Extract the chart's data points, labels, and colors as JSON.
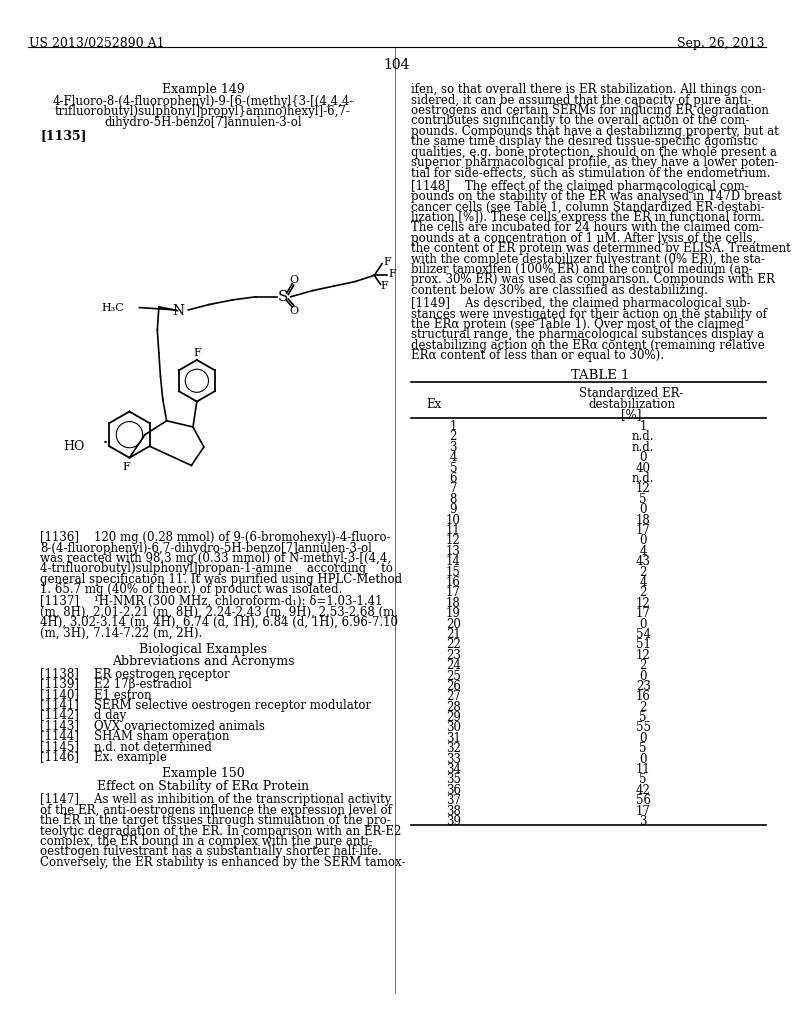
{
  "page_header_left": "US 2013/0252890 A1",
  "page_header_right": "Sep. 26, 2013",
  "page_number": "104",
  "left_column": {
    "example_title": "Example 149",
    "compound_name_lines": [
      "4-Fluoro-8-(4-fluorophenyl)-9-[6-(methyl{3-[(4,4,4-",
      "trifluorobutyl)sulphonyl]propyl}amino)hexyl]-6,7-",
      "dihydro-5H-benzo[7]annulen-3-ol"
    ],
    "paragraph_1135": "[1135]",
    "para_1136_lines": [
      "[1136]    120 mg (0.28 mmol) of 9-(6-bromohexyl)-4-fluoro-",
      "8-(4-fluorophenyl)-6,7-dihydro-5H-benzo[7]annulen-3-ol",
      "was reacted with 98.3 mg (0.33 mmol) of N-methyl-3-[(4,4,",
      "4-trifluorobutyl)sulphonyl]propan-1-amine    according    to",
      "general specification 11. It was purified using HPLC-Method",
      "1. 65.7 mg (40% of theor.) of product was isolated."
    ],
    "para_1137_lines": [
      "[1137]    ¹H-NMR (300 MHz, chloroform-d₁): δ=1.03-1.41",
      "(m, 8H), 2.01-2.21 (m, 8H), 2.24-2.43 (m, 9H), 2.53-2.68 (m,",
      "4H), 3.02-3.14 (m, 4H), 6.74 (d, 1H), 6.84 (d, 1H), 6.96-7.10",
      "(m, 3H), 7.14-7.22 (m, 2H)."
    ],
    "bio_examples_title": "Biological Examples",
    "abbreviations_title": "Abbreviations and Acronyms",
    "abbreviations": [
      "[1138]    ER oestrogen receptor",
      "[1139]    E2 17β-estradiol",
      "[1140]    E1 estron",
      "[1141]    SERM selective oestrogen receptor modulator",
      "[1142]    d day",
      "[1143]    OVX ovariectomized animals",
      "[1144]    SHAM sham operation",
      "[1145]    n.d. not determined",
      "[1146]    Ex. example"
    ],
    "example_150_title": "Example 150",
    "example_150_subtitle": "Effect on Stability of ERα Protein",
    "para_1147_lines": [
      "[1147]    As well as inhibition of the transcriptional activity",
      "of the ER, anti-oestrogens influence the expression level of",
      "the ER in the target tissues through stimulation of the pro-",
      "teolytic degradation of the ER. In comparison with an ER-E2",
      "complex, the ER bound in a complex with the pure anti-",
      "oestrogen fulvestrant has a substantially shorter half-life.",
      "Conversely, the ER stability is enhanced by the SERM tamox-"
    ]
  },
  "right_column": {
    "para_cont_lines": [
      "ifen, so that overall there is ER stabilization. All things con-",
      "sidered, it can be assumed that the capacity of pure anti-",
      "oestrogens and certain SERMs for inducing ER degradation",
      "contributes significantly to the overall action of the com-",
      "pounds. Compounds that have a destabilizing property, but at",
      "the same time display the desired tissue-specific agonistic",
      "qualities, e.g. bone protection, should on the whole present a",
      "superior pharmacological profile, as they have a lower poten-",
      "tial for side-effects, such as stimulation of the endometrium."
    ],
    "para_1148_lines": [
      "[1148]    The effect of the claimed pharmacological com-",
      "pounds on the stability of the ER was analysed in T47D breast",
      "cancer cells (see Table 1, column Standardized ER-destabi-",
      "lization [%]). These cells express the ER in functional form.",
      "The cells are incubated for 24 hours with the claimed com-",
      "pounds at a concentration of 1 μM. After lysis of the cells,",
      "the content of ER protein was determined by ELISA. Treatment",
      "with the complete destabilizer fulvestrant (0% ER), the sta-",
      "bilizer tamoxifen (100% ER) and the control medium (ap-",
      "prox. 30% ER) was used as comparison. Compounds with ER",
      "content below 30% are classified as destabilizing."
    ],
    "para_1149_lines": [
      "[1149]    As described, the claimed pharmacological sub-",
      "stances were investigated for their action on the stability of",
      "the ERα protein (see Table 1). Over most of the claimed",
      "structural range, the pharmacological substances display a",
      "destabilizing action on the ERα content (remaining relative",
      "ERα content of less than or equal to 30%)."
    ],
    "table_title": "TABLE 1",
    "table_header_col1": "Ex",
    "table_header_col2_lines": [
      "Standardized ER-",
      "destabilization",
      "[%]"
    ],
    "table_data": [
      [
        1,
        "1"
      ],
      [
        2,
        "n.d."
      ],
      [
        3,
        "n.d."
      ],
      [
        4,
        "0"
      ],
      [
        5,
        "40"
      ],
      [
        6,
        "n.d."
      ],
      [
        7,
        "12"
      ],
      [
        8,
        "5"
      ],
      [
        9,
        "0"
      ],
      [
        10,
        "18"
      ],
      [
        11,
        "17"
      ],
      [
        12,
        "0"
      ],
      [
        13,
        "4"
      ],
      [
        14,
        "43"
      ],
      [
        15,
        "2"
      ],
      [
        16,
        "4"
      ],
      [
        17,
        "2"
      ],
      [
        18,
        "12"
      ],
      [
        19,
        "17"
      ],
      [
        20,
        "0"
      ],
      [
        21,
        "54"
      ],
      [
        22,
        "51"
      ],
      [
        23,
        "12"
      ],
      [
        24,
        "2"
      ],
      [
        25,
        "0"
      ],
      [
        26,
        "23"
      ],
      [
        27,
        "16"
      ],
      [
        28,
        "2"
      ],
      [
        29,
        "5"
      ],
      [
        30,
        "55"
      ],
      [
        31,
        "0"
      ],
      [
        32,
        "5"
      ],
      [
        33,
        "0"
      ],
      [
        34,
        "11"
      ],
      [
        35,
        "5"
      ],
      [
        36,
        "42"
      ],
      [
        37,
        "56"
      ],
      [
        38,
        "17"
      ],
      [
        39,
        "3"
      ]
    ]
  },
  "background_color": "#ffffff",
  "text_color": "#000000"
}
